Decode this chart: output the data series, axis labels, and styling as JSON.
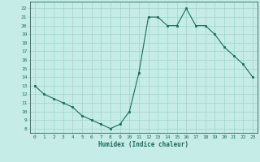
{
  "x": [
    0,
    1,
    2,
    3,
    4,
    5,
    6,
    7,
    8,
    9,
    10,
    11,
    12,
    13,
    14,
    15,
    16,
    17,
    18,
    19,
    20,
    21,
    22,
    23
  ],
  "y": [
    13,
    12,
    11.5,
    11,
    10.5,
    9.5,
    9,
    8.5,
    8,
    8.5,
    10,
    14.5,
    21,
    21,
    20,
    20,
    22,
    20,
    20,
    19,
    17.5,
    16.5,
    15.5,
    14
  ],
  "xlabel": "Humidex (Indice chaleur)",
  "xlim": [
    -0.5,
    23.5
  ],
  "ylim": [
    7.5,
    22.8
  ],
  "yticks": [
    8,
    9,
    10,
    11,
    12,
    13,
    14,
    15,
    16,
    17,
    18,
    19,
    20,
    21,
    22
  ],
  "xticks": [
    0,
    1,
    2,
    3,
    4,
    5,
    6,
    7,
    8,
    9,
    10,
    11,
    12,
    13,
    14,
    15,
    16,
    17,
    18,
    19,
    20,
    21,
    22,
    23
  ],
  "line_color": "#1a6b5a",
  "marker_color": "#1a6b5a",
  "bg_color": "#c5ece6",
  "grid_color": "#9dd4cc",
  "tick_label_color": "#1a6b5a",
  "xlabel_color": "#1a6b5a"
}
